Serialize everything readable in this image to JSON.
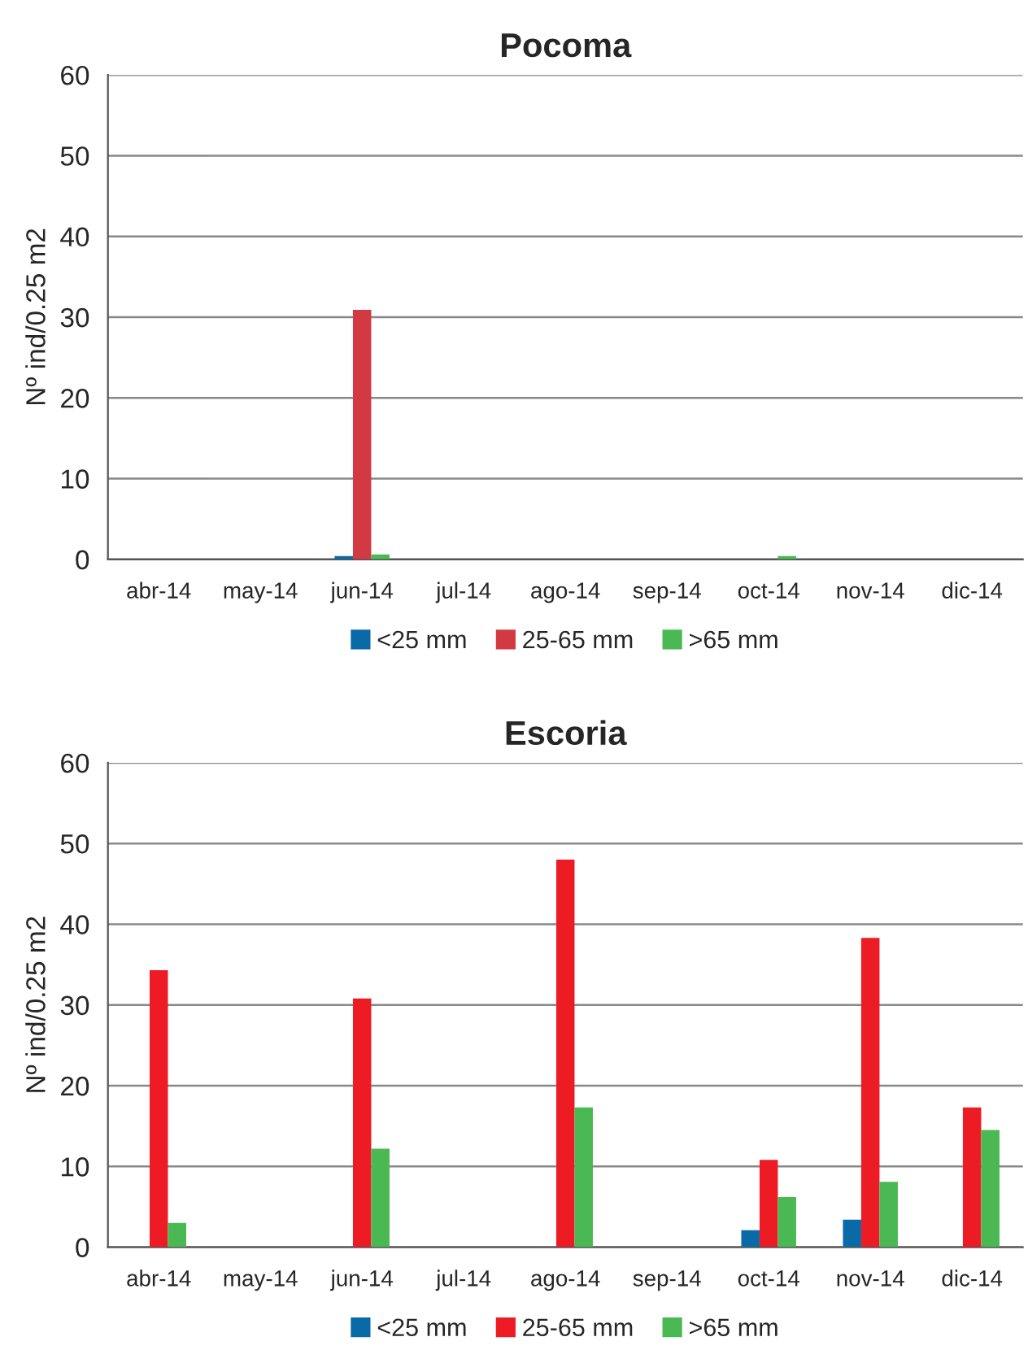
{
  "chart_data": [
    {
      "type": "bar",
      "title": "Pocoma",
      "ylabel": "Nº ind/0.25 m2",
      "categories": [
        "abr-14",
        "may-14",
        "jun-14",
        "jul-14",
        "ago-14",
        "sep-14",
        "oct-14",
        "nov-14",
        "dic-14"
      ],
      "series": [
        {
          "name": "<25 mm",
          "color": "#0a6aa8",
          "values": [
            0,
            0,
            0.4,
            0,
            0,
            0,
            0,
            0,
            0
          ]
        },
        {
          "name": "25-65 mm",
          "color": "#d13a42",
          "values": [
            0,
            0,
            30.9,
            0,
            0,
            0,
            0,
            0,
            0
          ]
        },
        {
          "name": ">65 mm",
          "color": "#4ab853",
          "values": [
            0,
            0,
            0.6,
            0,
            0,
            0,
            0.4,
            0,
            0
          ]
        }
      ],
      "ylim": [
        0,
        60
      ],
      "yticks": [
        0,
        10,
        20,
        30,
        40,
        50,
        60
      ],
      "grid": "y",
      "legend": "bottom"
    },
    {
      "type": "bar",
      "title": "Escoria",
      "ylabel": "Nº ind/0.25 m2",
      "categories": [
        "abr-14",
        "may-14",
        "jun-14",
        "jul-14",
        "ago-14",
        "sep-14",
        "oct-14",
        "nov-14",
        "dic-14"
      ],
      "series": [
        {
          "name": "<25 mm",
          "color": "#0a6aa8",
          "values": [
            0,
            0,
            0,
            0,
            0,
            0,
            2.1,
            3.4,
            0
          ]
        },
        {
          "name": "25-65 mm",
          "color": "#ed1c24",
          "values": [
            34.3,
            0,
            30.8,
            0,
            48,
            0,
            10.8,
            38.3,
            17.3
          ]
        },
        {
          "name": ">65 mm",
          "color": "#4ab853",
          "values": [
            3.0,
            0,
            12.2,
            0,
            17.3,
            0,
            6.2,
            8.1,
            14.5
          ]
        }
      ],
      "ylim": [
        0,
        60
      ],
      "yticks": [
        0,
        10,
        20,
        30,
        40,
        50,
        60
      ],
      "grid": "y",
      "legend": "bottom"
    }
  ]
}
